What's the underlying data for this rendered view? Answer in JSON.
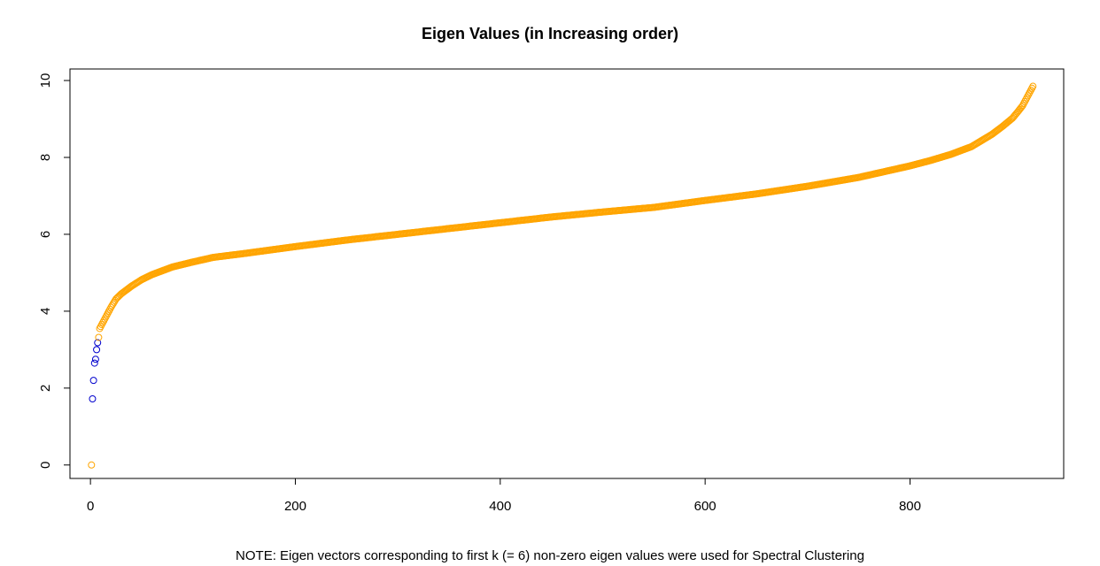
{
  "chart_data": {
    "type": "scatter",
    "title": "Eigen Values (in Increasing order)",
    "note": "NOTE: Eigen vectors corresponding to first k (= 6) non-zero eigen values were used for Spectral Clustering",
    "xlabel": "",
    "ylabel": "",
    "xlim": [
      -20,
      950
    ],
    "ylim": [
      -0.35,
      10.3
    ],
    "x_ticks": [
      0,
      200,
      400,
      600,
      800
    ],
    "y_ticks": [
      0,
      2,
      4,
      6,
      8,
      10
    ],
    "grid": false,
    "n_points": 920,
    "colors": {
      "default": "#ffa500",
      "highlight": "#0000cd"
    },
    "highlighted_indices": [
      2,
      3,
      4,
      5,
      6,
      7
    ],
    "curve_knots": {
      "x": [
        1,
        2,
        3,
        4,
        5,
        6,
        7,
        8,
        9,
        10,
        12,
        15,
        18,
        20,
        25,
        30,
        40,
        50,
        60,
        80,
        100,
        120,
        150,
        200,
        250,
        300,
        350,
        400,
        450,
        500,
        550,
        600,
        650,
        700,
        750,
        800,
        820,
        840,
        860,
        880,
        890,
        900,
        905,
        910,
        915,
        918,
        920
      ],
      "y": [
        0.0,
        1.72,
        2.2,
        2.65,
        2.75,
        3.0,
        3.18,
        3.32,
        3.55,
        3.6,
        3.7,
        3.85,
        4.0,
        4.1,
        4.32,
        4.45,
        4.65,
        4.82,
        4.95,
        5.15,
        5.28,
        5.4,
        5.5,
        5.68,
        5.85,
        6.0,
        6.15,
        6.3,
        6.45,
        6.58,
        6.7,
        6.88,
        7.05,
        7.25,
        7.48,
        7.78,
        7.92,
        8.08,
        8.28,
        8.6,
        8.8,
        9.02,
        9.18,
        9.35,
        9.6,
        9.75,
        9.85
      ]
    }
  }
}
